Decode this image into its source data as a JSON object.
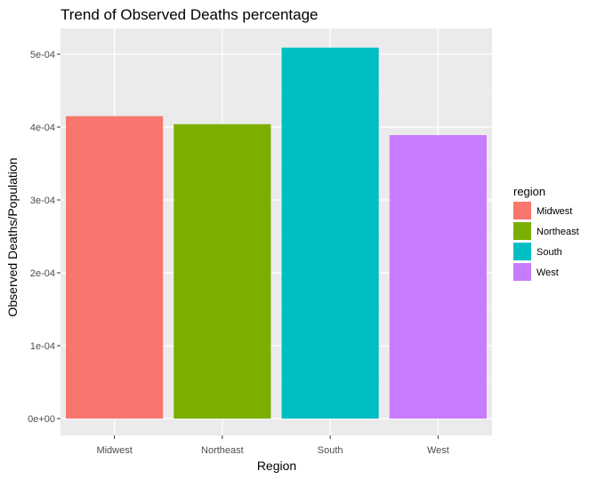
{
  "chart_data": {
    "type": "bar",
    "title": "Trend of Observed Deaths percentage",
    "xlabel": "Region",
    "ylabel": "Observed Deaths/Population",
    "categories": [
      "Midwest",
      "Northeast",
      "South",
      "West"
    ],
    "values": [
      0.000415,
      0.000404,
      0.000509,
      0.000389
    ],
    "colors": [
      "#F8766D",
      "#7CAE00",
      "#00BFC4",
      "#C77CFF"
    ],
    "ylim": [
      0,
      0.00055
    ],
    "yticks": [
      0,
      0.0001,
      0.0002,
      0.0003,
      0.0004,
      0.0005
    ],
    "ytick_labels": [
      "0e+00",
      "1e-04",
      "2e-04",
      "3e-04",
      "4e-04",
      "5e-04"
    ],
    "grid": true,
    "legend": {
      "title": "region",
      "position": "right",
      "entries": [
        "Midwest",
        "Northeast",
        "South",
        "West"
      ]
    }
  },
  "style": {
    "panel_bg": "#EBEBEB",
    "grid_major": "#FFFFFF",
    "tick_color": "#333333"
  }
}
